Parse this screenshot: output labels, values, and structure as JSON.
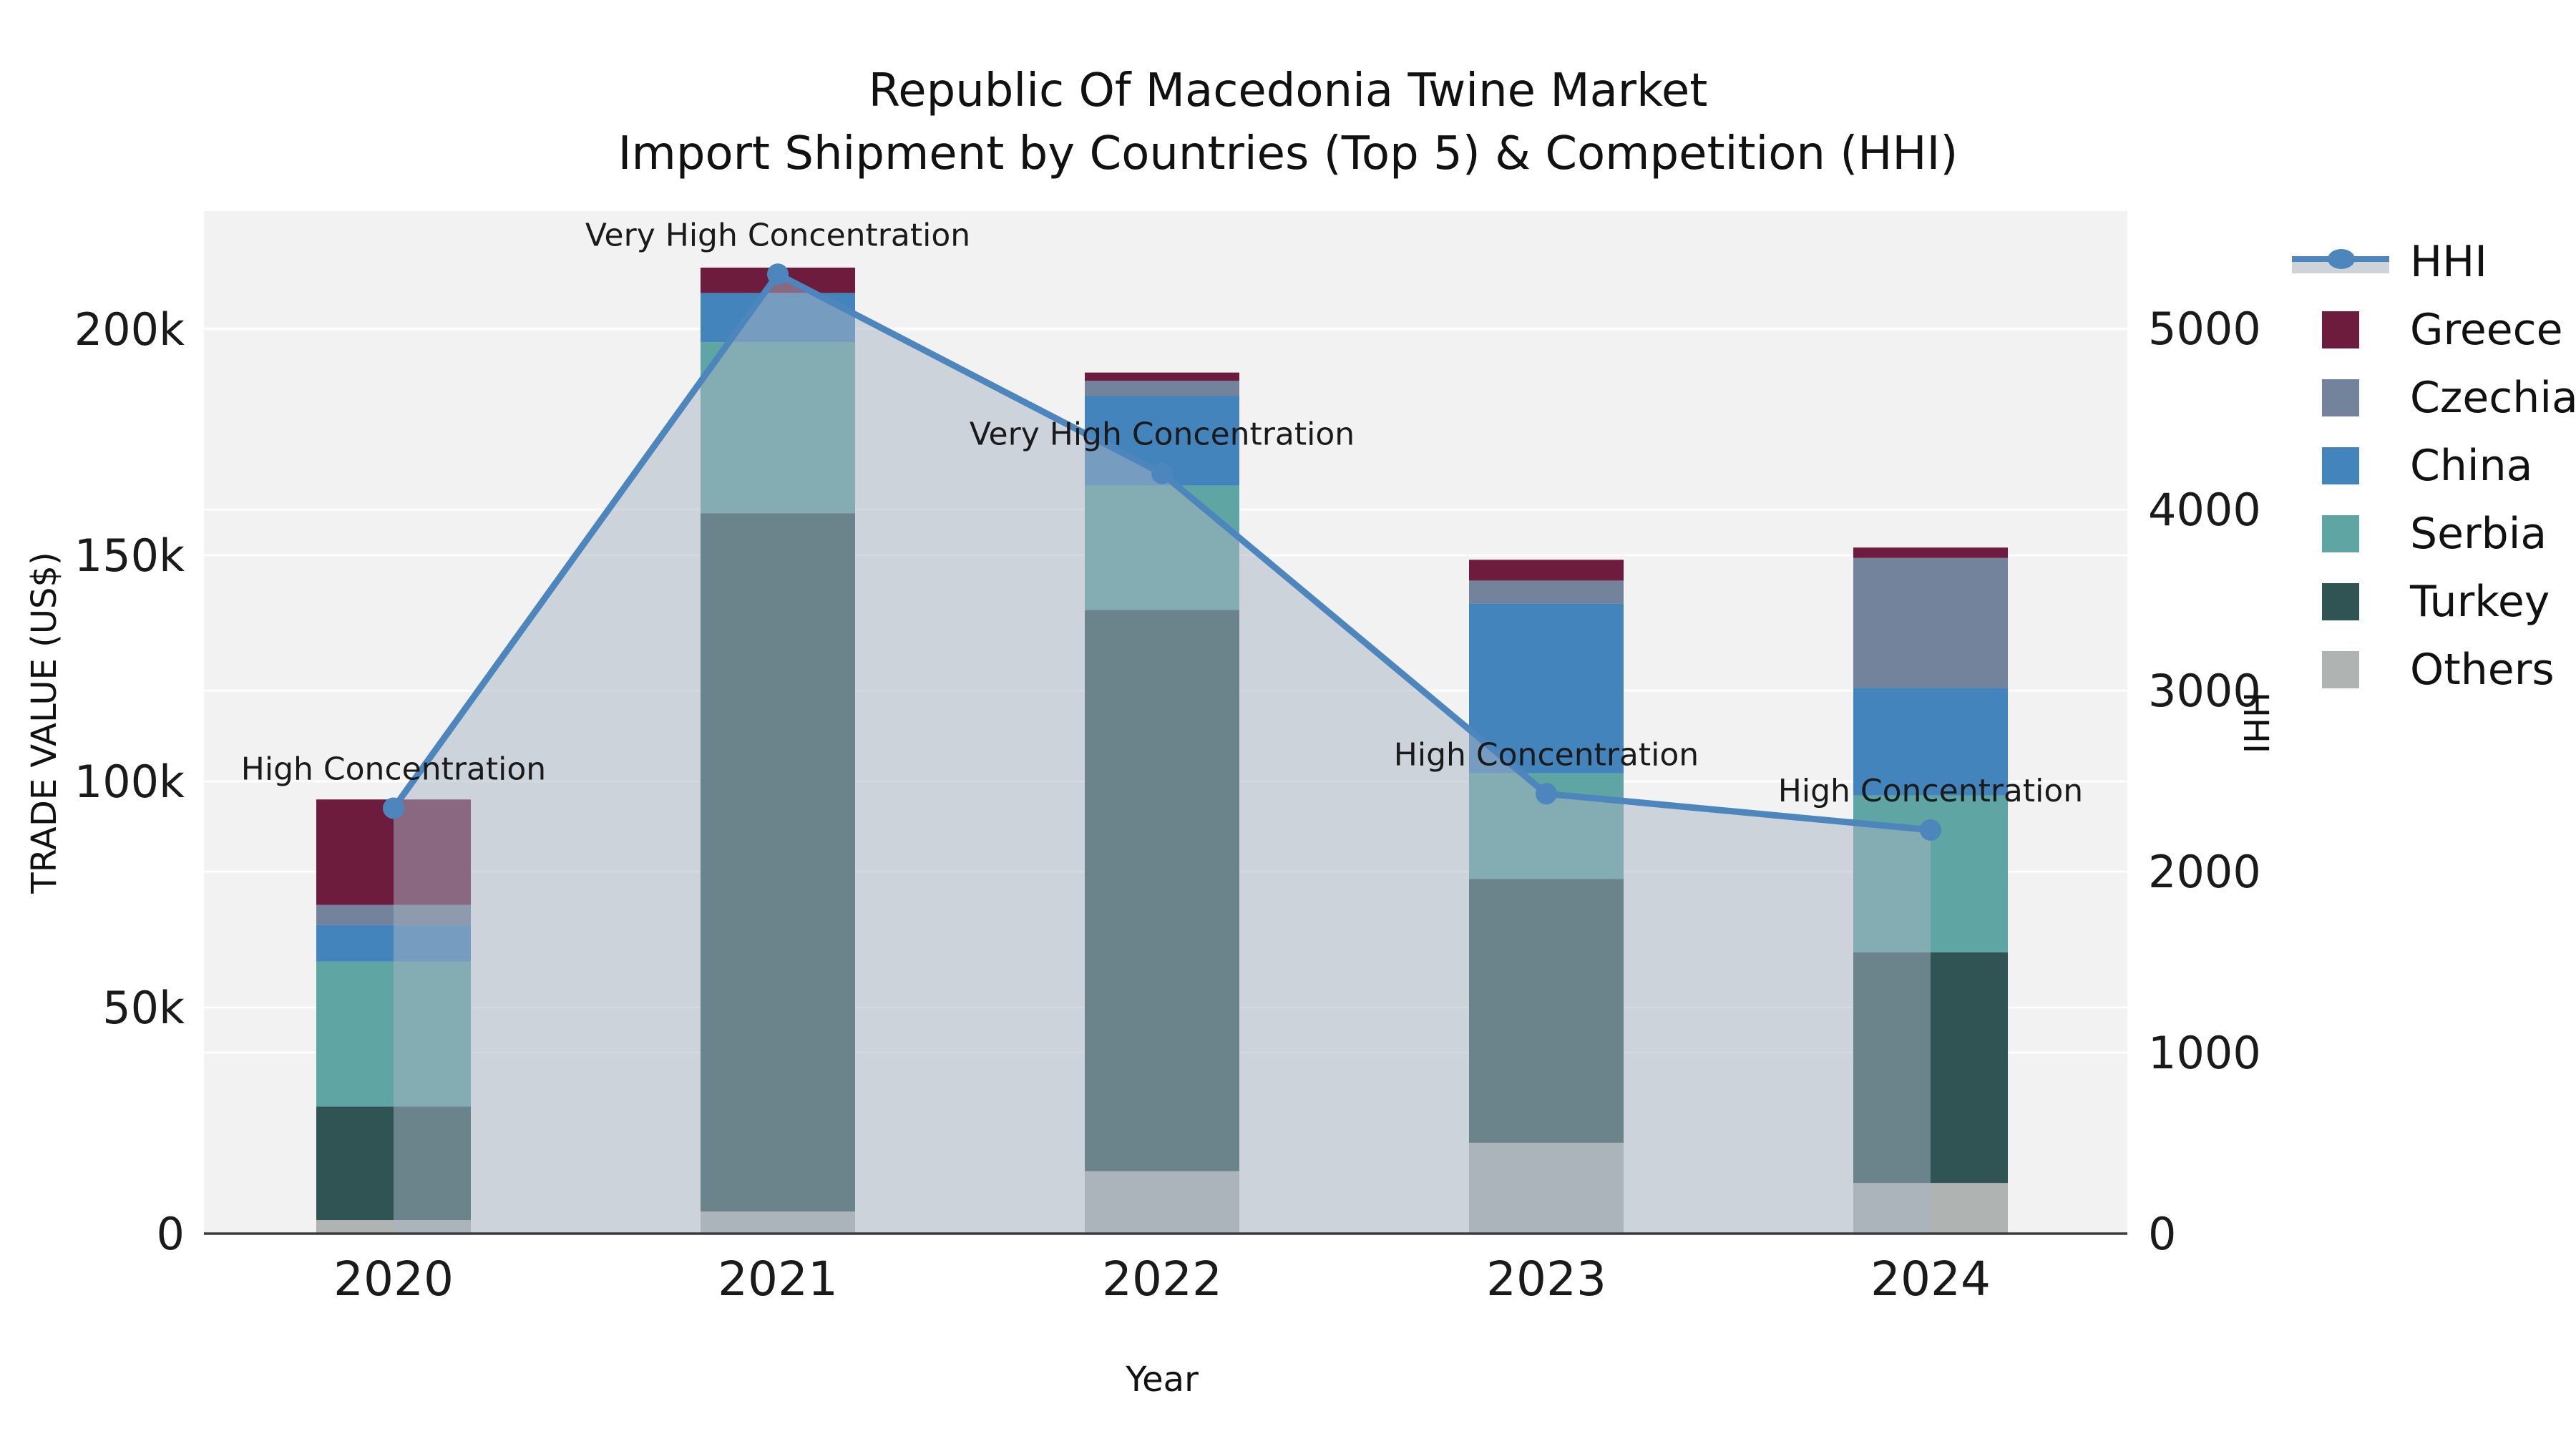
{
  "title": {
    "line1": "Republic Of Macedonia Twine Market",
    "line2": "Import Shipment by Countries (Top 5) & Competition (HHI)"
  },
  "axes": {
    "x": {
      "label": "Year",
      "ticks": [
        "2020",
        "2021",
        "2022",
        "2023",
        "2024"
      ]
    },
    "y_left": {
      "label": "TRADE VALUE (US$)",
      "ticks": [
        "0",
        "50k",
        "100k",
        "150k",
        "200k"
      ],
      "tick_values": [
        0,
        50000,
        100000,
        150000,
        200000
      ]
    },
    "y_right": {
      "label": "HHI",
      "ticks": [
        "0",
        "1000",
        "2000",
        "3000",
        "4000",
        "5000"
      ],
      "tick_values": [
        0,
        1000,
        2000,
        3000,
        4000,
        5000
      ]
    }
  },
  "legend": {
    "items": [
      {
        "label": "HHI",
        "type": "line",
        "color": "#4c86bc"
      },
      {
        "label": "Greece",
        "type": "square",
        "color": "#6e1c3e"
      },
      {
        "label": "Czechia",
        "type": "square",
        "color": "#72839b"
      },
      {
        "label": "China",
        "type": "square",
        "color": "#4484bc"
      },
      {
        "label": "Serbia",
        "type": "square",
        "color": "#5fa5a3"
      },
      {
        "label": "Turkey",
        "type": "square",
        "color": "#2f5453"
      },
      {
        "label": "Others",
        "type": "square",
        "color": "#afb3b2"
      }
    ]
  },
  "colors": {
    "plot_bg": "#f2f2f2",
    "grid": "#ffffff",
    "axis_line": "#3a3a3a",
    "text": "#1a1a1a",
    "hhi_line": "#4c86bc",
    "area_fill": "#a8b4c4"
  },
  "chart_data": {
    "type": "bar",
    "stacked": true,
    "title": "Republic Of Macedonia Twine Market — Import Shipment by Countries (Top 5) & Competition (HHI)",
    "xlabel": "Year",
    "ylabel_left": "TRADE VALUE (US$)",
    "ylabel_right": "HHI",
    "ylim_left": [
      0,
      226100
    ],
    "ylim_right": [
      0,
      5649
    ],
    "grid": true,
    "legend_position": "right",
    "categories": [
      2020,
      2021,
      2022,
      2023,
      2024
    ],
    "series": [
      {
        "name": "Others",
        "color": "#afb3b2",
        "values": [
          3000,
          4900,
          13800,
          20100,
          11200
        ]
      },
      {
        "name": "Turkey",
        "color": "#2f5453",
        "values": [
          25100,
          154400,
          124100,
          58300,
          51000
        ]
      },
      {
        "name": "Serbia",
        "color": "#5fa5a3",
        "values": [
          32100,
          37800,
          27500,
          23400,
          34700
        ]
      },
      {
        "name": "China",
        "color": "#4484bc",
        "values": [
          8000,
          10900,
          19800,
          37500,
          23800
        ]
      },
      {
        "name": "Czechia",
        "color": "#72839b",
        "values": [
          4500,
          0,
          3400,
          5100,
          28700
        ]
      },
      {
        "name": "Greece",
        "color": "#6e1c3e",
        "values": [
          23300,
          5600,
          1800,
          4600,
          2300
        ]
      }
    ],
    "line_series": {
      "name": "HHI",
      "axis": "right",
      "color": "#4c86bc",
      "values": [
        2350,
        5300,
        4200,
        2430,
        2230
      ],
      "area_fill": true
    },
    "annotations": [
      "High Concentration",
      "Very High Concentration",
      "Very High Concentration",
      "High Concentration",
      "High Concentration"
    ]
  }
}
